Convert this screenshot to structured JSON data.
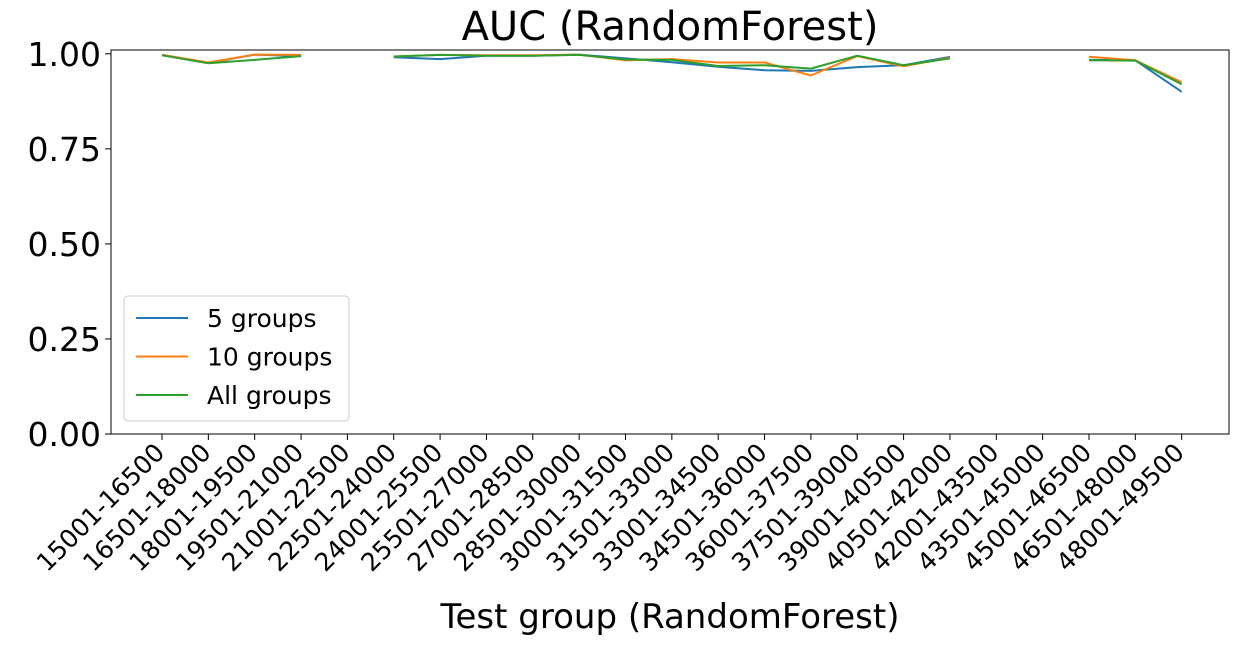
{
  "chart_data": {
    "type": "line",
    "title": "AUC (RandomForest)",
    "xlabel": "Test group (RandomForest)",
    "ylabel": "",
    "ylim": [
      0,
      1.01
    ],
    "yticks": [
      "0.00",
      "0.25",
      "0.50",
      "0.75",
      "1.00"
    ],
    "ytick_values": [
      0,
      0.25,
      0.5,
      0.75,
      1.0
    ],
    "categories": [
      "15001-16500",
      "16501-18000",
      "18001-19500",
      "19501-21000",
      "21001-22500",
      "22501-24000",
      "24001-25500",
      "25501-27000",
      "27001-28500",
      "28501-30000",
      "30001-31500",
      "31501-33000",
      "33001-34500",
      "34501-36000",
      "36001-37500",
      "37501-39000",
      "39001-40500",
      "40501-42000",
      "42001-43500",
      "43501-45000",
      "45001-46500",
      "46501-48000",
      "48001-49500"
    ],
    "grid": false,
    "legend_position": "lower-left",
    "series": [
      {
        "name": "5 groups",
        "color": "#1f77b4",
        "values": [
          0.997,
          0.976,
          0.998,
          0.994,
          null,
          0.991,
          0.986,
          0.995,
          0.995,
          0.998,
          0.988,
          0.978,
          0.966,
          0.957,
          0.955,
          0.965,
          0.97,
          0.992,
          null,
          null,
          0.984,
          0.983,
          0.9
        ]
      },
      {
        "name": "10 groups",
        "color": "#ff7f0e",
        "values": [
          0.997,
          0.977,
          0.998,
          0.997,
          null,
          0.993,
          0.997,
          0.996,
          0.996,
          0.998,
          0.983,
          0.986,
          0.977,
          0.977,
          0.943,
          0.994,
          0.967,
          0.99,
          null,
          null,
          0.992,
          0.983,
          0.925
        ]
      },
      {
        "name": "All groups",
        "color": "#2ca02c",
        "values": [
          0.996,
          0.975,
          0.984,
          0.994,
          null,
          0.993,
          0.997,
          0.995,
          0.995,
          0.997,
          0.985,
          0.984,
          0.968,
          0.97,
          0.961,
          0.995,
          0.97,
          0.988,
          null,
          null,
          0.983,
          0.982,
          0.92
        ]
      }
    ]
  }
}
